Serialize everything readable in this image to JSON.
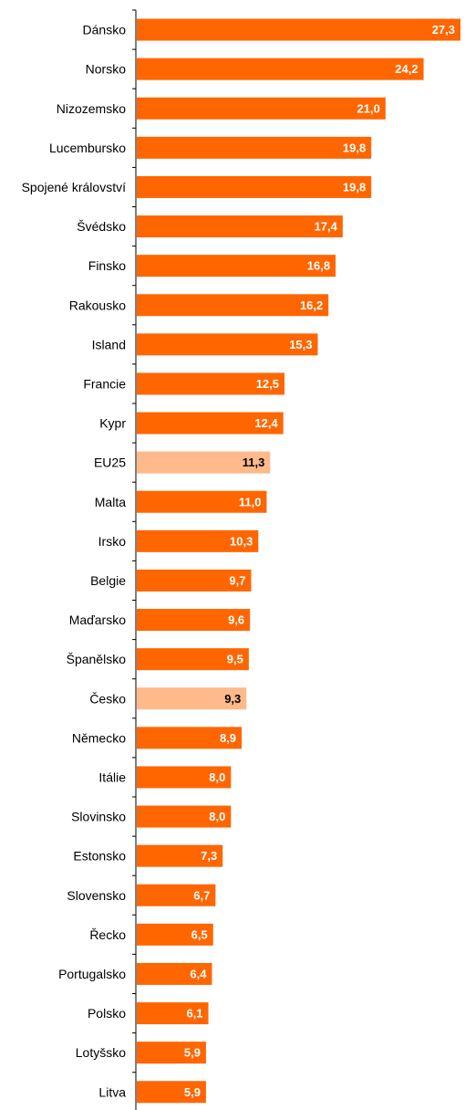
{
  "chart_data": {
    "type": "bar",
    "orientation": "horizontal",
    "categories": [
      "Dánsko",
      "Norsko",
      "Nizozemsko",
      "Lucembursko",
      "Spojené království",
      "Švédsko",
      "Finsko",
      "Rakousko",
      "Island",
      "Francie",
      "Kypr",
      "EU25",
      "Malta",
      "Irsko",
      "Belgie",
      "Maďarsko",
      "Španělsko",
      "Česko",
      "Německo",
      "Itálie",
      "Slovinsko",
      "Estonsko",
      "Slovensko",
      "Řecko",
      "Portugalsko",
      "Polsko",
      "Lotyšsko",
      "Litva"
    ],
    "values": [
      27.3,
      24.2,
      21.0,
      19.8,
      19.8,
      17.4,
      16.8,
      16.2,
      15.3,
      12.5,
      12.4,
      11.3,
      11.0,
      10.3,
      9.7,
      9.6,
      9.5,
      9.3,
      8.9,
      8.0,
      8.0,
      7.3,
      6.7,
      6.5,
      6.4,
      6.1,
      5.9,
      5.9
    ],
    "value_labels": [
      "27,3",
      "24,2",
      "21,0",
      "19,8",
      "19,8",
      "17,4",
      "16,8",
      "16,2",
      "15,3",
      "12,5",
      "12,4",
      "11,3",
      "11,0",
      "10,3",
      "9,7",
      "9,6",
      "9,5",
      "9,3",
      "8,9",
      "8,0",
      "8,0",
      "7,3",
      "6,7",
      "6,5",
      "6,4",
      "6,1",
      "5,9",
      "5,9"
    ],
    "highlighted": [
      "EU25",
      "Česko"
    ],
    "xlim": [
      0,
      27.3
    ],
    "grid": false,
    "colors": {
      "bar": "#FF6600",
      "highlight_bar": "#FFB98A",
      "label_on_bar": "#FFFFFF",
      "label_on_highlight": "#000000",
      "axis": "#000000"
    }
  }
}
